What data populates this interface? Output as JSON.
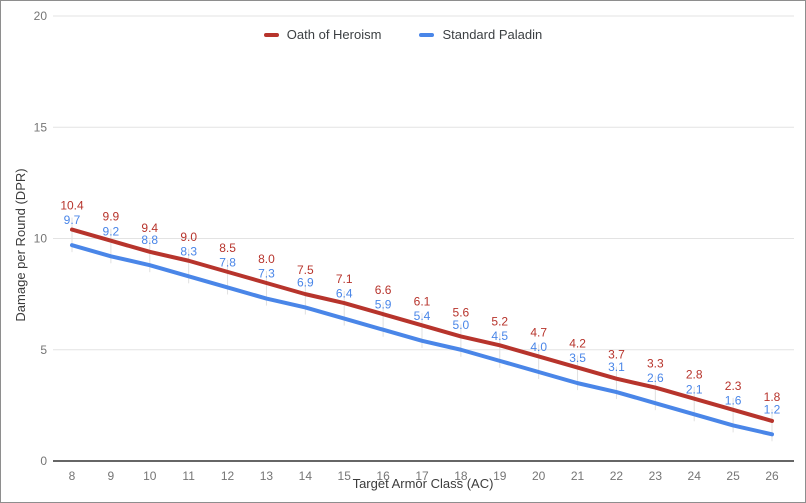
{
  "chart_data": {
    "type": "line",
    "x": [
      8,
      9,
      10,
      11,
      12,
      13,
      14,
      15,
      16,
      17,
      18,
      19,
      20,
      21,
      22,
      23,
      24,
      25,
      26
    ],
    "series": [
      {
        "name": "Oath of Heroism",
        "color": "#b7342c",
        "values": [
          10.4,
          9.9,
          9.4,
          9.0,
          8.5,
          8.0,
          7.5,
          7.1,
          6.6,
          6.1,
          5.6,
          5.2,
          4.7,
          4.2,
          3.7,
          3.3,
          2.8,
          2.3,
          1.8
        ]
      },
      {
        "name": "Standard Paladin",
        "color": "#4a86e8",
        "values": [
          9.7,
          9.2,
          8.8,
          8.3,
          7.8,
          7.3,
          6.9,
          6.4,
          5.9,
          5.4,
          5.0,
          4.5,
          4.0,
          3.5,
          3.1,
          2.6,
          2.1,
          1.6,
          1.2
        ]
      }
    ],
    "xlabel": "Target Armor Class (AC)",
    "ylabel": "Damage per Round (DPR)",
    "ylim": [
      0,
      20
    ],
    "yticks": [
      0,
      5,
      10,
      15,
      20
    ],
    "grid": "horizontal",
    "legend_position": "top",
    "data_labels": true,
    "colors": {
      "gridline": "#e3e3e3",
      "axis_line": "#333333",
      "tick_text": "#757575",
      "axis_title_text": "#3c3c3c",
      "legend_text": "#3c4043",
      "connector": "#e0e0e0"
    }
  }
}
